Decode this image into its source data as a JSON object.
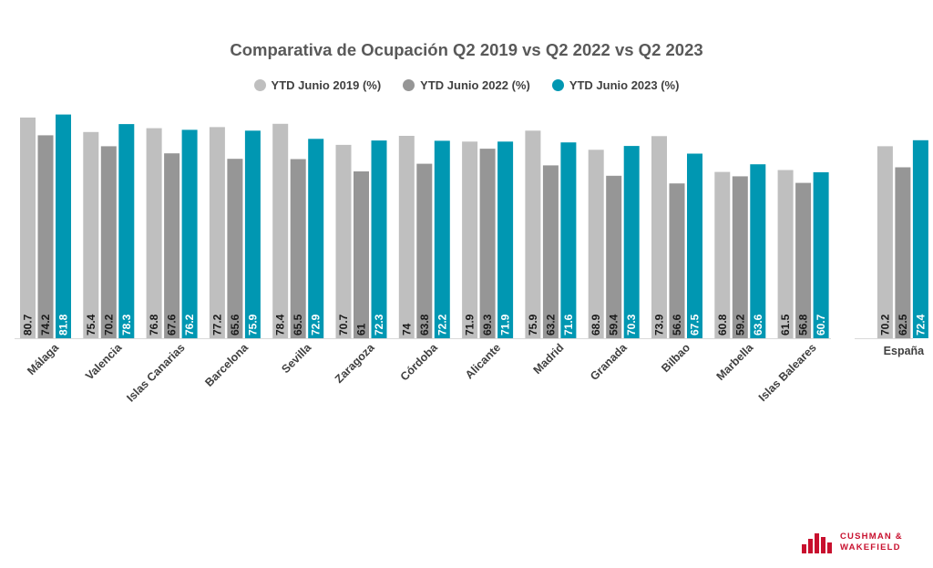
{
  "chart_data": {
    "type": "bar",
    "title": "Comparativa de Ocupación Q2 2019 vs Q2 2022 vs Q2 2023",
    "categories": [
      "Málaga",
      "Valencia",
      "Islas Canarias",
      "Barcelona",
      "Sevilla",
      "Zaragoza",
      "Córdoba",
      "Alicante",
      "Madrid",
      "Granada",
      "Bilbao",
      "Marbella",
      "Islas Baleares",
      "España"
    ],
    "series": [
      {
        "name": "YTD Junio 2019 (%)",
        "color": "#bfbfbf",
        "values": [
          80.7,
          75.4,
          76.8,
          77.2,
          78.4,
          70.7,
          74,
          71.9,
          75.9,
          68.9,
          73.9,
          60.8,
          61.5,
          70.2
        ]
      },
      {
        "name": "YTD Junio 2022 (%)",
        "color": "#969696",
        "values": [
          74.2,
          70.2,
          67.6,
          65.6,
          65.5,
          61,
          63.8,
          69.3,
          63.2,
          59.4,
          56.6,
          59.2,
          56.8,
          62.5
        ]
      },
      {
        "name": "YTD Junio 2023 (%)",
        "color": "#0097b2",
        "values": [
          81.8,
          78.3,
          76.2,
          75.9,
          72.9,
          72.3,
          72.2,
          71.9,
          71.6,
          70.3,
          67.5,
          63.6,
          60.7,
          72.4
        ]
      }
    ],
    "legend_position": "top-center",
    "grid": false,
    "data_labels": "vertical-inside-bottom"
  },
  "logo": {
    "line1": "CUSHMAN &",
    "line2": "WAKEFIELD",
    "color": "#c8102e"
  }
}
